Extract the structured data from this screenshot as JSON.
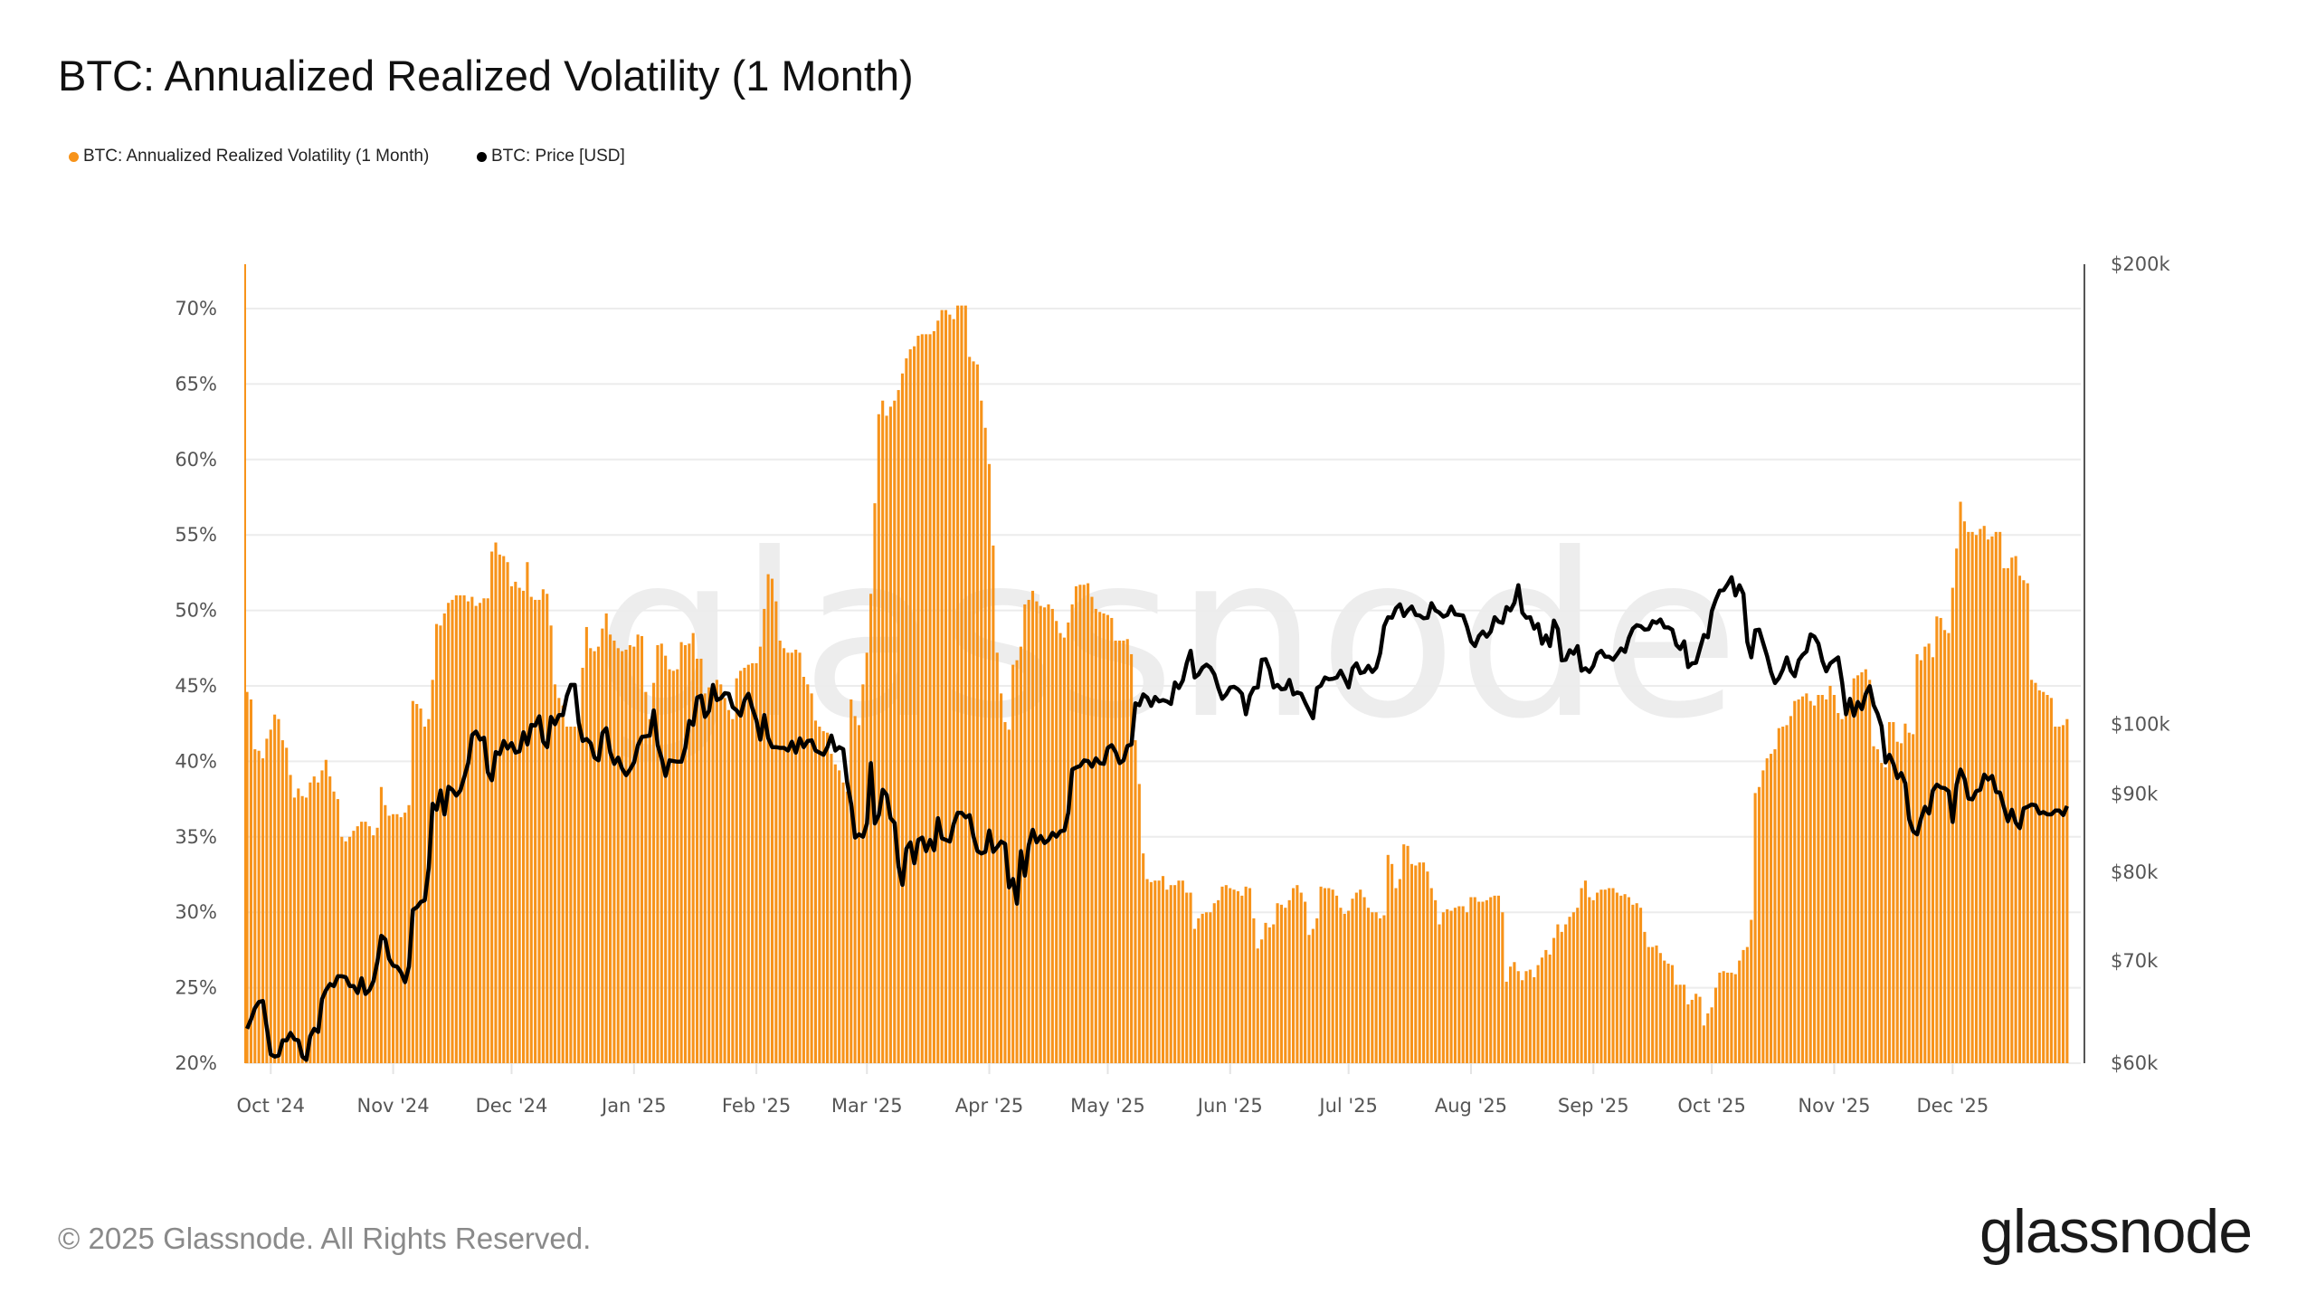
{
  "chart_data": {
    "type": "bar+line",
    "title": "BTC: Annualized Realized Volatility (1 Month)",
    "legend": {
      "position": "top-left"
    },
    "grid": true,
    "series": [
      {
        "name": "BTC: Annualized Realized Volatility (1 Month)",
        "type": "bar",
        "axis": "left",
        "color": "#F7931A",
        "unit": "%"
      },
      {
        "name": "BTC: Price [USD]",
        "type": "line",
        "axis": "right",
        "color": "#000000",
        "unit": "USD"
      }
    ],
    "y_left": {
      "range": [
        20,
        73
      ],
      "ticks": [
        20,
        25,
        30,
        35,
        40,
        45,
        50,
        55,
        60,
        65,
        70
      ],
      "tick_labels": [
        "20%",
        "25%",
        "30%",
        "35%",
        "40%",
        "45%",
        "50%",
        "55%",
        "60%",
        "65%",
        "70%"
      ]
    },
    "y_right": {
      "scale": "log",
      "range": [
        60000,
        200000
      ],
      "ticks": [
        60000,
        70000,
        80000,
        90000,
        100000,
        200000
      ],
      "tick_labels": [
        "$60k",
        "$70k",
        "$80k",
        "$90k",
        "$100k",
        "$200k"
      ]
    },
    "x_ticks": [
      {
        "date": "2024-10-01",
        "label": "Oct '24"
      },
      {
        "date": "2024-11-01",
        "label": "Nov '24"
      },
      {
        "date": "2024-12-01",
        "label": "Dec '24"
      },
      {
        "date": "2025-01-01",
        "label": "Jan '25"
      },
      {
        "date": "2025-02-01",
        "label": "Feb '25"
      },
      {
        "date": "2025-03-01",
        "label": "Mar '25"
      },
      {
        "date": "2025-04-01",
        "label": "Apr '25"
      },
      {
        "date": "2025-05-01",
        "label": "May '25"
      },
      {
        "date": "2025-06-01",
        "label": "Jun '25"
      },
      {
        "date": "2025-07-01",
        "label": "Jul '25"
      },
      {
        "date": "2025-08-01",
        "label": "Aug '25"
      },
      {
        "date": "2025-09-01",
        "label": "Sep '25"
      },
      {
        "date": "2025-10-01",
        "label": "Oct '25"
      },
      {
        "date": "2025-11-01",
        "label": "Nov '25"
      },
      {
        "date": "2025-12-01",
        "label": "Dec '25"
      }
    ],
    "daily": [
      {
        "month": "2024-09",
        "first_day": 25,
        "vol": [
          44.6,
          44.1,
          40.8,
          40.7,
          40.2,
          41.5
        ],
        "price": [
          63.2,
          64.1,
          65.2,
          65.8,
          65.9,
          63.3
        ]
      },
      {
        "month": "2024-10",
        "first_day": 1,
        "vol": [
          42.1,
          43.1,
          42.8,
          41.4,
          40.9,
          39.1,
          37.6,
          38.2,
          37.7,
          37.6,
          38.6,
          39.0,
          38.6,
          39.4,
          40.1,
          39.0,
          38.0,
          37.5,
          35.0,
          34.7,
          35.0,
          35.4,
          35.7,
          36.0,
          36.0,
          35.7,
          35.1,
          35.6,
          38.3,
          37.1,
          36.4
        ],
        "price": [
          60.8,
          60.6,
          60.7,
          62.1,
          62.1,
          62.8,
          62.2,
          62.1,
          60.6,
          60.3,
          62.5,
          63.2,
          62.9,
          66.1,
          67.0,
          67.6,
          67.4,
          68.4,
          68.4,
          68.3,
          67.4,
          67.4,
          66.7,
          68.2,
          66.6,
          67.0,
          67.9,
          69.9,
          72.7,
          72.3,
          70.2
        ]
      },
      {
        "month": "2024-11",
        "first_day": 1,
        "vol": [
          36.5,
          36.5,
          36.3,
          36.6,
          37.1,
          44.0,
          43.8,
          43.5,
          42.3,
          42.8,
          45.4,
          49.1,
          49.0,
          49.8,
          50.5,
          50.7,
          51.0,
          51.0,
          51.0,
          50.6,
          50.9,
          50.3,
          50.5,
          50.8,
          50.8,
          53.9,
          54.5,
          53.7,
          53.6,
          53.2
        ],
        "price": [
          69.5,
          69.4,
          68.8,
          67.8,
          69.4,
          75.6,
          75.9,
          76.5,
          76.7,
          80.5,
          88.7,
          87.9,
          90.5,
          87.3,
          91.0,
          90.6,
          89.8,
          90.5,
          92.3,
          94.3,
          98.4,
          98.9,
          97.7,
          98.0,
          93.0,
          91.9,
          95.9,
          95.6,
          97.5,
          96.4
        ]
      },
      {
        "month": "2024-12",
        "first_day": 1,
        "vol": [
          51.6,
          51.9,
          51.5,
          51.3,
          53.2,
          50.9,
          50.7,
          50.7,
          51.4,
          51.1,
          49.0,
          45.1,
          44.2,
          43.7,
          42.3,
          42.3,
          42.3,
          42.3,
          46.2,
          48.9,
          47.5,
          47.3,
          47.6,
          48.8,
          49.8,
          48.4,
          48.0,
          47.5,
          47.3,
          47.4,
          47.7
        ],
        "price": [
          97.2,
          95.8,
          96.0,
          98.8,
          97.0,
          99.9,
          99.8,
          101.2,
          97.4,
          96.6,
          101.1,
          100.0,
          101.4,
          101.4,
          104.4,
          106.1,
          106.1,
          100.2,
          97.5,
          97.8,
          97.2,
          95.1,
          94.7,
          98.7,
          99.4,
          95.8,
          94.2,
          95.1,
          93.5,
          92.6,
          93.4
        ]
      },
      {
        "month": "2025-01",
        "first_day": 1,
        "vol": [
          47.6,
          48.4,
          48.3,
          44.6,
          42.8,
          45.2,
          47.7,
          47.8,
          47.0,
          46.1,
          46.0,
          46.1,
          47.9,
          47.7,
          47.8,
          48.5,
          46.8,
          46.8,
          44.5,
          44.9,
          45.1,
          45.4,
          45.1,
          44.2,
          43.4,
          42.8,
          45.5,
          46.0,
          46.2,
          46.4,
          46.5
        ],
        "price": [
          94.4,
          96.9,
          98.1,
          98.2,
          98.3,
          102.1,
          96.9,
          95.0,
          92.5,
          94.7,
          94.6,
          94.5,
          94.5,
          96.5,
          100.5,
          99.9,
          104.1,
          104.4,
          101.1,
          102.0,
          106.1,
          103.7,
          104.0,
          104.8,
          104.7,
          102.6,
          102.1,
          101.3,
          103.7,
          104.7,
          102.4
        ]
      },
      {
        "month": "2025-02",
        "first_day": 1,
        "vol": [
          46.5,
          47.6,
          50.1,
          52.4,
          52.1,
          50.6,
          48.0,
          47.5,
          47.2,
          47.2,
          47.4,
          47.2,
          45.6,
          45.1,
          44.5,
          42.7,
          42.3,
          42.0,
          41.9,
          40.5,
          39.8,
          39.4,
          38.6,
          38.0,
          44.1,
          43.0,
          42.4,
          45.1
        ],
        "price": [
          100.6,
          97.7,
          101.4,
          97.9,
          96.6,
          96.6,
          96.5,
          96.5,
          96.1,
          97.4,
          95.8,
          97.9,
          96.6,
          97.5,
          97.6,
          96.1,
          95.8,
          95.5,
          96.6,
          98.3,
          96.1,
          96.6,
          96.3,
          91.6,
          88.7,
          84.3,
          84.7,
          84.4
        ]
      },
      {
        "month": "2025-03",
        "first_day": 1,
        "vol": [
          47.2,
          51.1,
          57.1,
          63.0,
          63.9,
          62.9,
          63.5,
          63.9,
          64.6,
          65.7,
          66.7,
          67.3,
          67.5,
          68.2,
          68.3,
          68.3,
          68.3,
          68.5,
          69.2,
          69.9,
          69.9,
          69.6,
          69.3,
          70.2,
          70.2,
          70.2,
          66.8,
          66.5,
          66.3,
          63.9,
          62.1
        ],
        "price": [
          86.1,
          94.3,
          86.1,
          87.2,
          90.6,
          89.9,
          86.8,
          86.2,
          80.7,
          78.5,
          82.9,
          83.7,
          81.1,
          84.0,
          84.3,
          82.6,
          84.0,
          82.7,
          86.8,
          84.2,
          84.0,
          83.8,
          86.1,
          87.5,
          87.5,
          86.9,
          87.2,
          84.4,
          82.6,
          82.3,
          82.5
        ]
      },
      {
        "month": "2025-04",
        "first_day": 1,
        "vol": [
          59.7,
          54.3,
          47.2,
          44.5,
          42.6,
          42.1,
          46.4,
          46.7,
          47.6,
          50.4,
          50.7,
          51.3,
          50.6,
          50.3,
          50.2,
          50.4,
          50.1,
          49.3,
          48.5,
          48.2,
          49.2,
          50.4,
          51.6,
          51.7,
          51.7,
          51.8,
          50.9,
          50.1,
          49.9,
          49.8
        ],
        "price": [
          85.2,
          82.5,
          83.1,
          83.8,
          83.5,
          78.2,
          79.2,
          76.3,
          82.6,
          79.6,
          83.4,
          85.3,
          83.7,
          84.5,
          83.6,
          84.0,
          84.9,
          84.4,
          85.1,
          85.2,
          87.5,
          93.4,
          93.7,
          93.9,
          94.7,
          94.6,
          93.8,
          95.0,
          94.3,
          94.2
        ]
      },
      {
        "month": "2025-05",
        "first_day": 1,
        "vol": [
          49.7,
          49.5,
          48.0,
          48.0,
          48.0,
          48.1,
          47.1,
          41.4,
          38.5,
          33.9,
          32.2,
          32.0,
          32.1,
          32.1,
          32.4,
          31.5,
          31.8,
          31.8,
          32.1,
          32.1,
          31.3,
          31.3,
          28.9,
          29.6,
          29.9,
          30.0,
          30.0,
          30.6,
          30.8,
          31.7,
          31.8
        ],
        "price": [
          96.5,
          96.9,
          95.9,
          94.3,
          94.7,
          96.8,
          97.0,
          103.2,
          102.9,
          104.6,
          104.1,
          102.8,
          104.2,
          103.5,
          103.7,
          103.5,
          103.1,
          106.5,
          105.6,
          106.8,
          109.6,
          111.7,
          107.3,
          107.8,
          108.9,
          109.4,
          108.9,
          107.8,
          105.6,
          103.9,
          104.6
        ]
      },
      {
        "month": "2025-06",
        "first_day": 1,
        "vol": [
          31.6,
          31.5,
          31.4,
          31.1,
          31.7,
          31.6,
          29.6,
          27.6,
          28.2,
          29.3,
          29.0,
          29.2,
          30.6,
          30.5,
          30.3,
          30.8,
          31.6,
          31.8,
          31.3,
          30.7,
          28.5,
          28.9,
          29.6,
          31.7,
          31.6,
          31.6,
          31.5,
          31.1,
          30.3,
          29.9
        ],
        "price": [
          105.7,
          105.8,
          105.4,
          104.7,
          101.5,
          104.4,
          105.6,
          105.7,
          110.2,
          110.3,
          108.6,
          105.7,
          106.1,
          105.4,
          105.5,
          106.9,
          104.6,
          104.9,
          104.7,
          103.3,
          102.1,
          100.9,
          105.6,
          106.0,
          107.3,
          107.0,
          107.1,
          107.3,
          108.4,
          107.1
        ]
      },
      {
        "month": "2025-07",
        "first_day": 1,
        "vol": [
          30.1,
          30.9,
          31.3,
          31.5,
          31.0,
          30.3,
          30.0,
          30.0,
          29.6,
          29.8,
          33.8,
          33.2,
          31.6,
          32.2,
          34.5,
          34.4,
          33.2,
          33.1,
          33.3,
          33.3,
          32.7,
          31.6,
          30.8,
          29.2,
          30.0,
          30.2,
          30.1,
          30.3,
          30.4,
          30.4,
          30.0
        ],
        "price": [
          105.7,
          108.8,
          109.6,
          108.0,
          108.2,
          109.2,
          108.2,
          108.9,
          111.3,
          115.9,
          117.5,
          117.4,
          119.1,
          119.8,
          117.7,
          118.7,
          119.4,
          117.9,
          117.8,
          117.3,
          117.4,
          120.0,
          118.7,
          118.3,
          117.6,
          117.9,
          119.4,
          118.0,
          117.9,
          117.8,
          115.8
        ]
      },
      {
        "month": "2025-08",
        "first_day": 1,
        "vol": [
          31.0,
          31.0,
          30.7,
          30.7,
          30.8,
          31.0,
          31.1,
          31.1,
          30.0,
          25.4,
          26.4,
          26.7,
          26.1,
          25.5,
          26.1,
          26.2,
          25.7,
          26.5,
          27.0,
          27.5,
          27.2,
          28.3,
          29.2,
          28.7,
          29.2,
          29.7,
          30.0,
          30.3,
          31.6,
          32.1,
          31.0
        ],
        "price": [
          113.3,
          112.5,
          114.2,
          115.0,
          114.1,
          115.0,
          117.5,
          116.7,
          116.5,
          119.3,
          118.7,
          120.1,
          123.3,
          118.3,
          117.4,
          117.5,
          115.5,
          116.3,
          112.9,
          114.3,
          112.5,
          116.9,
          115.4,
          110.1,
          110.2,
          111.8,
          111.2,
          112.5,
          108.4,
          108.8,
          108.2
        ]
      },
      {
        "month": "2025-09",
        "first_day": 1,
        "vol": [
          30.8,
          31.3,
          31.5,
          31.5,
          31.6,
          31.6,
          31.3,
          31.1,
          31.2,
          31.0,
          30.5,
          30.6,
          30.3,
          28.7,
          27.7,
          27.7,
          27.8,
          27.3,
          26.8,
          26.6,
          26.5,
          25.2,
          25.2,
          25.2,
          23.9,
          24.2,
          24.6,
          24.4,
          22.5,
          23.3
        ],
        "price": [
          109.2,
          111.2,
          111.7,
          110.7,
          110.7,
          110.2,
          111.1,
          112.1,
          111.5,
          113.9,
          115.5,
          116.1,
          115.9,
          115.3,
          115.4,
          116.8,
          116.5,
          117.1,
          115.7,
          115.7,
          115.3,
          112.7,
          112.0,
          113.3,
          109.0,
          109.6,
          109.7,
          112.1,
          114.4,
          114.0
        ]
      },
      {
        "month": "2025-10",
        "first_day": 1,
        "vol": [
          23.7,
          25.0,
          26.0,
          26.1,
          26.0,
          26.0,
          25.9,
          26.8,
          27.5,
          27.7,
          29.5,
          37.9,
          38.3,
          39.4,
          40.2,
          40.5,
          40.8,
          42.2,
          42.3,
          42.4,
          43.0,
          44.0,
          44.1,
          44.3,
          44.5,
          44.0,
          43.7,
          44.4,
          44.4,
          44.1,
          45.0
        ],
        "price": [
          118.6,
          120.6,
          122.3,
          122.4,
          123.5,
          124.8,
          121.4,
          123.3,
          121.7,
          113.2,
          110.6,
          115.2,
          115.3,
          113.0,
          110.8,
          108.2,
          106.4,
          107.2,
          108.6,
          110.6,
          108.4,
          107.5,
          110.1,
          111.0,
          111.6,
          114.5,
          114.1,
          112.9,
          110.0,
          108.3,
          109.6
        ]
      },
      {
        "month": "2025-11",
        "first_day": 1,
        "vol": [
          44.4,
          43.2,
          42.8,
          43.2,
          43.5,
          45.5,
          45.7,
          45.9,
          46.1,
          45.4,
          41.0,
          40.8,
          39.9,
          39.6,
          42.6,
          42.6,
          41.3,
          41.2,
          42.5,
          41.9,
          41.8,
          47.1,
          46.7,
          47.6,
          47.8,
          46.9,
          49.6,
          49.5,
          48.7,
          48.5
        ],
        "price": [
          110.1,
          110.6,
          106.5,
          101.5,
          103.9,
          101.3,
          103.4,
          102.3,
          104.7,
          105.9,
          102.9,
          101.6,
          99.7,
          94.4,
          95.5,
          94.2,
          92.2,
          92.9,
          91.5,
          86.6,
          85.1,
          84.7,
          86.8,
          88.3,
          87.4,
          90.5,
          91.3,
          90.9,
          90.8,
          90.4
        ]
      },
      {
        "month": "2025-12",
        "first_day": 1,
        "vol": [
          51.5,
          54.1,
          57.2,
          55.9,
          55.2,
          55.2,
          55.0,
          55.4,
          55.6,
          54.7,
          54.9,
          55.2,
          55.2,
          52.8,
          52.8,
          53.5,
          53.6,
          52.3,
          52.0,
          51.8,
          45.4,
          45.2,
          44.7,
          44.6,
          44.4,
          44.2,
          42.3,
          42.3,
          42.4,
          42.8
        ],
        "price": [
          86.3,
          91.3,
          93.4,
          92.1,
          89.4,
          89.3,
          90.4,
          90.6,
          92.7,
          92.0,
          92.5,
          90.3,
          90.2,
          88.2,
          86.4,
          87.9,
          86.2,
          85.5,
          88.1,
          88.3,
          88.6,
          88.5,
          87.4,
          87.6,
          87.3,
          87.3,
          87.8,
          87.8,
          87.2,
          88.4
        ]
      }
    ],
    "price_unit_in_daily": "thousand USD"
  },
  "header": {
    "title": "BTC: Annualized Realized Volatility (1 Month)"
  },
  "legend": {
    "items": [
      {
        "label": "BTC: Annualized Realized Volatility (1 Month)",
        "color": "#F7931A"
      },
      {
        "label": "BTC: Price [USD]",
        "color": "#000000"
      }
    ]
  },
  "watermark": "glassnode",
  "footer": {
    "copyright": "© 2025 Glassnode. All Rights Reserved.",
    "logo": "glassnode"
  }
}
